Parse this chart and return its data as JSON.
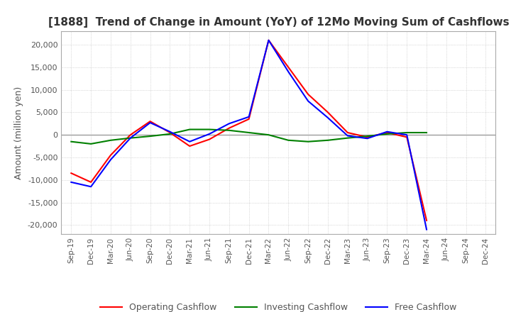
{
  "title": "[1888]  Trend of Change in Amount (YoY) of 12Mo Moving Sum of Cashflows",
  "ylabel": "Amount (million yen)",
  "ylim": [
    -22000,
    23000
  ],
  "yticks": [
    -20000,
    -15000,
    -10000,
    -5000,
    0,
    5000,
    10000,
    15000,
    20000
  ],
  "x_labels": [
    "Sep-19",
    "Dec-19",
    "Mar-20",
    "Jun-20",
    "Sep-20",
    "Dec-20",
    "Mar-21",
    "Jun-21",
    "Sep-21",
    "Dec-21",
    "Mar-22",
    "Jun-22",
    "Sep-22",
    "Dec-22",
    "Mar-23",
    "Jun-23",
    "Sep-23",
    "Dec-23",
    "Mar-24",
    "Jun-24",
    "Sep-24",
    "Dec-24"
  ],
  "operating": [
    -8500,
    -10500,
    -4500,
    0,
    3000,
    500,
    -2500,
    -1000,
    1500,
    3500,
    21000,
    15000,
    9000,
    5000,
    500,
    -500,
    500,
    -500,
    -19000,
    null,
    null,
    null
  ],
  "investing": [
    -1500,
    -2000,
    -1200,
    -700,
    -300,
    200,
    1200,
    1200,
    1000,
    500,
    0,
    -1200,
    -1500,
    -1200,
    -700,
    -300,
    200,
    500,
    500,
    null,
    null,
    null
  ],
  "free": [
    -10500,
    -11500,
    -5500,
    -700,
    2700,
    700,
    -1500,
    200,
    2500,
    4000,
    21000,
    14000,
    7500,
    3800,
    -200,
    -800,
    700,
    0,
    -21000,
    null,
    null,
    null
  ],
  "line_colors": {
    "operating": "#ff0000",
    "investing": "#008000",
    "free": "#0000ff"
  },
  "legend_labels": [
    "Operating Cashflow",
    "Investing Cashflow",
    "Free Cashflow"
  ],
  "background_color": "#ffffff",
  "grid_color": "#aaaaaa",
  "title_color": "#333333"
}
